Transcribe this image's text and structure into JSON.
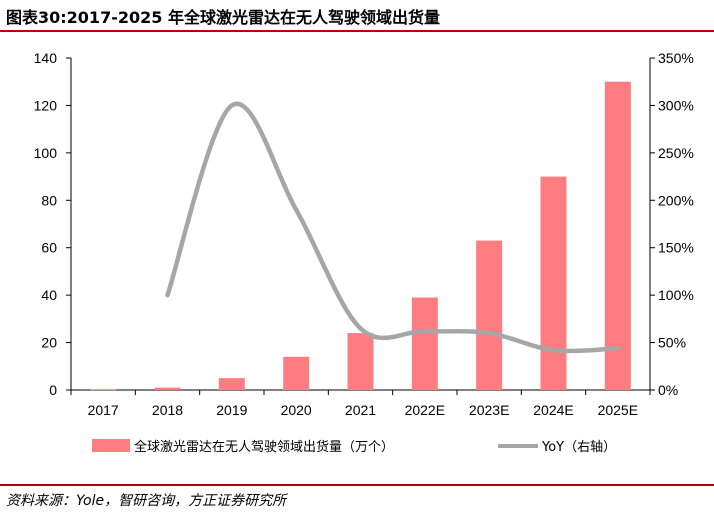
{
  "title": "图表30:2017-2025 年全球激光雷达在无人驾驶领域出货量",
  "source": "资料来源：Yole，智研咨询，方正证券研究所",
  "colors": {
    "bar": "#ff7c80",
    "line": "#a6a6a6",
    "rule": "#c00000"
  },
  "chart_data": {
    "type": "bar",
    "title": "",
    "categories": [
      "2017",
      "2018",
      "2019",
      "2020",
      "2021",
      "2022E",
      "2023E",
      "2024E",
      "2025E"
    ],
    "series": [
      {
        "name": "全球激光雷达在无人驾驶领域出货量（万个）",
        "type": "bar",
        "axis": "left",
        "values": [
          0.3,
          1,
          5,
          14,
          24,
          39,
          63,
          90,
          130
        ]
      },
      {
        "name": "YoY（右轴）",
        "type": "line",
        "axis": "right",
        "values": [
          null,
          100,
          300,
          190,
          65,
          62,
          60,
          42,
          44
        ]
      }
    ],
    "left_axis": {
      "ylim": [
        0,
        140
      ],
      "ticks": [
        "0",
        "20",
        "40",
        "60",
        "80",
        "100",
        "120",
        "140"
      ]
    },
    "right_axis": {
      "ylim": [
        0,
        350
      ],
      "ticks": [
        "0%",
        "50%",
        "100%",
        "150%",
        "200%",
        "250%",
        "300%",
        "350%"
      ]
    },
    "legend_position": "bottom",
    "grid": false
  }
}
